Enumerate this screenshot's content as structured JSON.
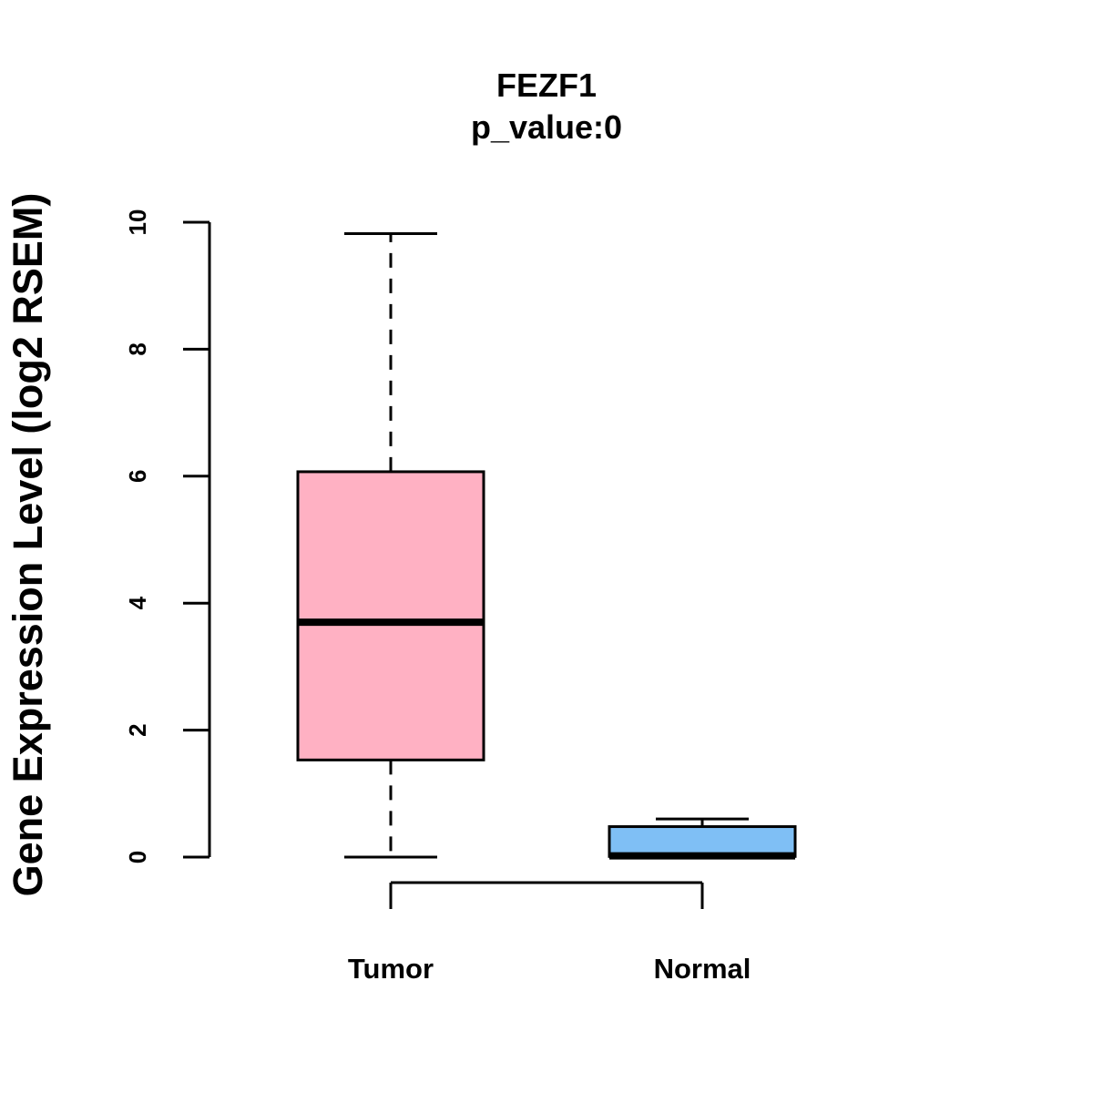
{
  "chart_data": {
    "type": "boxplot",
    "title": "FEZF1",
    "subtitle": "p_value:0",
    "ylabel": "Gene Expression Level (log2 RSEM)",
    "xlabel": "",
    "ylim": [
      0,
      10
    ],
    "yticks": [
      0,
      2,
      4,
      6,
      8,
      10
    ],
    "grid": false,
    "categories": [
      "Tumor",
      "Normal"
    ],
    "boxes": [
      {
        "category": "Tumor",
        "min": 0,
        "q1": 1.53,
        "median": 3.7,
        "q3": 6.07,
        "max": 9.82,
        "color": "#FFB1C3"
      },
      {
        "category": "Normal",
        "min": 0,
        "q1": 0.01,
        "median": 0.02,
        "q3": 0.48,
        "max": 0.6,
        "color": "#7FBFF5"
      }
    ]
  }
}
